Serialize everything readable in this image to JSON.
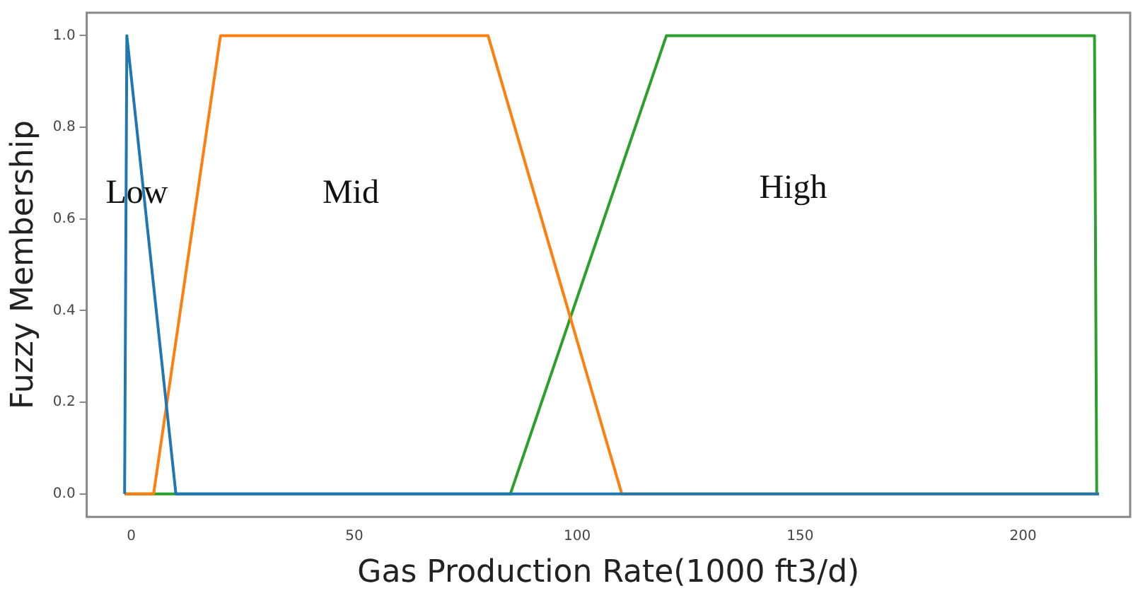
{
  "chart_data": {
    "type": "line",
    "xlabel": "Gas Production Rate(1000 ft3/d)",
    "ylabel": "Fuzzy Membership",
    "series": [
      {
        "color": "#1f77b4",
        "x": [
          -1.5,
          -1,
          10,
          217
        ],
        "values": [
          0,
          1,
          0,
          0
        ]
      },
      {
        "color": "#ff7f0e",
        "x": [
          -1.5,
          5,
          20,
          80,
          110,
          217
        ],
        "values": [
          0,
          0,
          1,
          1,
          0,
          0
        ]
      },
      {
        "color": "#2ca02c",
        "x": [
          -1.5,
          85,
          120,
          216,
          216.5
        ],
        "values": [
          0,
          0,
          1,
          1,
          0
        ]
      }
    ],
    "xlim": [
      -10,
      224
    ],
    "ylim": [
      -0.05,
      1.05
    ],
    "xticks": [
      0,
      50,
      100,
      150,
      200
    ],
    "yticks": [
      {
        "value": 0,
        "label": "0.0"
      },
      {
        "value": 0.2,
        "label": "0.2"
      },
      {
        "value": 0.4,
        "label": "0.4"
      },
      {
        "value": 0.6,
        "label": "0.6"
      },
      {
        "value": 0.8,
        "label": "0.8"
      },
      {
        "value": 1,
        "label": "1.0"
      }
    ],
    "annotations": [
      "Low",
      "Mid",
      "High"
    ],
    "grid": false,
    "legend": false,
    "marker": "none",
    "line_style": "solid"
  }
}
